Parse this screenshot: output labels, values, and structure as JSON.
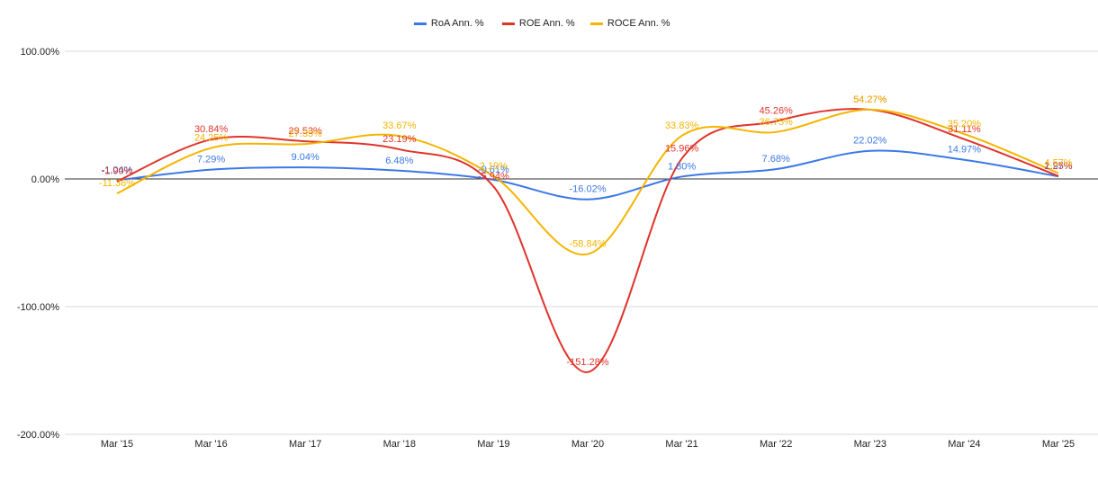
{
  "chart_data": {
    "type": "line",
    "title": "",
    "xlabel": "",
    "ylabel": "",
    "categories": [
      "Mar '15",
      "Mar '16",
      "Mar '17",
      "Mar '18",
      "Mar '19",
      "Mar '20",
      "Mar '21",
      "Mar '22",
      "Mar '23",
      "Mar '24",
      "Mar '25"
    ],
    "ylim": [
      -200,
      100
    ],
    "yticks": [
      100,
      0,
      -100,
      -200
    ],
    "ytick_labels": [
      "100.00%",
      "0.00%",
      "-100.00%",
      "-200.00%"
    ],
    "grid": true,
    "legend_position": "top",
    "series": [
      {
        "name": "RoA Ann. %",
        "color": "#3b78e7",
        "values": [
          -1.04,
          7.29,
          9.04,
          6.48,
          -0.61,
          -16.02,
          1.8,
          7.68,
          22.02,
          14.97,
          1.97
        ],
        "labels": [
          "-1.04%",
          "7.29%",
          "9.04%",
          "6.48%",
          "-0.61%",
          "-16.02%",
          "1.80%",
          "7.68%",
          "22.02%",
          "14.97%",
          "1.97%"
        ]
      },
      {
        "name": "ROE Ann. %",
        "color": "#e0342b",
        "values": [
          -1.9,
          30.84,
          29.53,
          23.19,
          -5.94,
          -151.28,
          15.96,
          45.26,
          54.27,
          31.11,
          2.25
        ],
        "labels": [
          "-1.90%",
          "30.84%",
          "29.53%",
          "23.19%",
          "-5.94%",
          "-151.28%",
          "15.96%",
          "45.26%",
          "54.27%",
          "31.11%",
          "2.25%"
        ]
      },
      {
        "name": "ROCE Ann. %",
        "color": "#f5b400",
        "values": [
          -11.36,
          24.25,
          27.35,
          33.67,
          2.19,
          -58.84,
          33.83,
          36.75,
          54.27,
          35.2,
          4.57
        ],
        "labels": [
          "-11.36%",
          "24.25%",
          "27.35%",
          "33.67%",
          "2.19%",
          "-58.84%",
          "33.83%",
          "36.75%",
          "54.27%",
          "35.20%",
          "4.57%"
        ]
      }
    ]
  }
}
